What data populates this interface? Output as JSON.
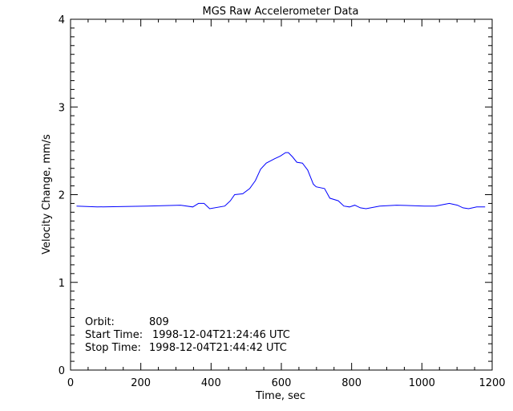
{
  "chart_data": {
    "type": "line",
    "title": "MGS Raw Accelerometer Data",
    "xlabel": "Time, sec",
    "ylabel": "Velocity Change, mm/s",
    "xlim": [
      0,
      1200
    ],
    "ylim": [
      0,
      4
    ],
    "x_ticks": [
      "0",
      "200",
      "400",
      "600",
      "800",
      "1000",
      "1200"
    ],
    "y_ticks": [
      "0",
      "1",
      "2",
      "3",
      "4"
    ],
    "grid": false,
    "line_color": "#0000ff",
    "annotations": [
      {
        "label": "Orbit:",
        "value": "809"
      },
      {
        "label": "Start Time:",
        "value": "1998-12-04T21:24:46 UTC"
      },
      {
        "label": "Stop Time:",
        "value": "1998-12-04T21:44:42 UTC"
      }
    ],
    "series": [
      {
        "x": [
          17,
          76,
          218,
          313,
          348,
          364,
          380,
          396,
          439,
          455,
          467,
          490,
          510,
          526,
          541,
          557,
          581,
          597,
          612,
          620,
          632,
          644,
          660,
          675,
          691,
          699,
          723,
          738,
          762,
          778,
          794,
          809,
          825,
          841,
          880,
          928,
          1007,
          1038,
          1078,
          1101,
          1117,
          1133,
          1156,
          1180
        ],
        "y": [
          1.87,
          1.86,
          1.87,
          1.88,
          1.86,
          1.9,
          1.9,
          1.84,
          1.87,
          1.93,
          2.0,
          2.01,
          2.07,
          2.16,
          2.29,
          2.36,
          2.41,
          2.44,
          2.48,
          2.48,
          2.43,
          2.37,
          2.36,
          2.28,
          2.12,
          2.09,
          2.07,
          1.96,
          1.93,
          1.87,
          1.86,
          1.88,
          1.85,
          1.84,
          1.87,
          1.88,
          1.87,
          1.87,
          1.9,
          1.88,
          1.85,
          1.84,
          1.86,
          1.86
        ]
      }
    ]
  }
}
